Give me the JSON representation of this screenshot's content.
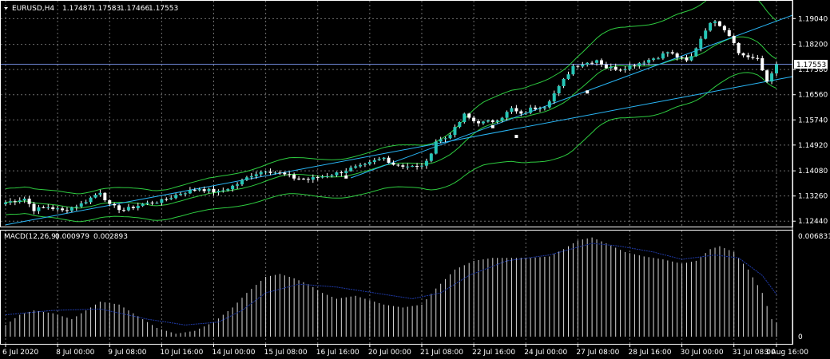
{
  "header": {
    "symbol": "EURUSD,H4",
    "ohlc": [
      "1.17487",
      "1.17583",
      "1.17466",
      "1.17553"
    ]
  },
  "macd": {
    "label": "MACD(12,26,9)",
    "main_value": "0.000979",
    "signal_value": "0.002893",
    "top_label": "0.006831",
    "zero_label": "0"
  },
  "colors": {
    "background": "#000000",
    "grid": "#6e6e6e",
    "frame": "#ffffff",
    "bull_body": "#26c6b7",
    "bear_body": "#ffffff",
    "bands": "#2ecc40",
    "trendline": "#29b6f6",
    "price_line": "#6f86d6",
    "macd_hist": "#d8d8d8",
    "macd_signal": "#1f3aa8"
  },
  "chart_data": {
    "type": "candlestick",
    "price_axis": {
      "ticks": [
        "1.19040",
        "1.18200",
        "1.17380",
        "1.16560",
        "1.15740",
        "1.14920",
        "1.14080",
        "1.13260",
        "1.12440"
      ],
      "range": [
        1.1229,
        1.1949
      ],
      "current_price": "1.17553",
      "current_value": 1.17553
    },
    "time_axis": {
      "bar_count": 164,
      "labels": [
        "6 Jul 2020",
        "8 Jul 00:00",
        "9 Jul 08:00",
        "10 Jul 16:00",
        "14 Jul 00:00",
        "15 Jul 08:00",
        "16 Jul 16:00",
        "20 Jul 00:00",
        "21 Jul 08:00",
        "22 Jul 16:00",
        "24 Jul 00:00",
        "27 Jul 08:00",
        "28 Jul 16:00",
        "30 Jul 00:00",
        "31 Jul 08:00",
        "3 Aug 16:00"
      ],
      "label_bars": [
        0,
        11,
        22,
        33,
        44,
        55,
        66,
        77,
        88,
        99,
        110,
        121,
        132,
        143,
        154,
        163
      ]
    },
    "close_path": [
      [
        0,
        1.1305
      ],
      [
        4,
        1.1318
      ],
      [
        6,
        1.1282
      ],
      [
        9,
        1.129
      ],
      [
        12,
        1.1278
      ],
      [
        16,
        1.13
      ],
      [
        20,
        1.134
      ],
      [
        22,
        1.1295
      ],
      [
        25,
        1.128
      ],
      [
        29,
        1.13
      ],
      [
        33,
        1.131
      ],
      [
        37,
        1.1335
      ],
      [
        41,
        1.135
      ],
      [
        45,
        1.1338
      ],
      [
        49,
        1.1365
      ],
      [
        52,
        1.1395
      ],
      [
        55,
        1.141
      ],
      [
        58,
        1.14
      ],
      [
        61,
        1.1385
      ],
      [
        64,
        1.138
      ],
      [
        67,
        1.139
      ],
      [
        70,
        1.14
      ],
      [
        73,
        1.1415
      ],
      [
        76,
        1.1425
      ],
      [
        78,
        1.144
      ],
      [
        80,
        1.145
      ],
      [
        82,
        1.143
      ],
      [
        84,
        1.1425
      ],
      [
        87,
        1.142
      ],
      [
        89,
        1.1435
      ],
      [
        91,
        1.1505
      ],
      [
        93,
        1.1515
      ],
      [
        95,
        1.1545
      ],
      [
        97,
        1.159
      ],
      [
        99,
        1.157
      ],
      [
        101,
        1.1565
      ],
      [
        103,
        1.157
      ],
      [
        105,
        1.1585
      ],
      [
        107,
        1.161
      ],
      [
        109,
        1.159
      ],
      [
        111,
        1.161
      ],
      [
        114,
        1.162
      ],
      [
        117,
        1.168
      ],
      [
        120,
        1.175
      ],
      [
        123,
        1.176
      ],
      [
        125,
        1.177
      ],
      [
        127,
        1.1745
      ],
      [
        130,
        1.174
      ],
      [
        133,
        1.1755
      ],
      [
        136,
        1.177
      ],
      [
        138,
        1.178
      ],
      [
        140,
        1.1795
      ],
      [
        142,
        1.178
      ],
      [
        144,
        1.1765
      ],
      [
        145,
        1.178
      ],
      [
        146,
        1.181
      ],
      [
        148,
        1.187
      ],
      [
        150,
        1.19
      ],
      [
        152,
        1.187
      ],
      [
        154,
        1.183
      ],
      [
        155,
        1.179
      ],
      [
        157,
        1.178
      ],
      [
        159,
        1.177
      ],
      [
        161,
        1.17
      ],
      [
        162,
        1.173
      ],
      [
        163,
        1.17553
      ]
    ],
    "bollinger": {
      "period_width_upper": [
        [
          0,
          0.0045
        ],
        [
          40,
          0.005
        ],
        [
          88,
          0.006
        ],
        [
          100,
          0.008
        ],
        [
          120,
          0.011
        ],
        [
          140,
          0.014
        ],
        [
          150,
          0.017
        ],
        [
          163,
          0.0125
        ]
      ],
      "period_width_lower": [
        [
          0,
          0.004
        ],
        [
          40,
          0.005
        ],
        [
          88,
          0.008
        ],
        [
          100,
          0.012
        ],
        [
          120,
          0.018
        ],
        [
          140,
          0.016
        ],
        [
          150,
          0.0135
        ],
        [
          163,
          0.0095
        ]
      ]
    },
    "trendlines": [
      {
        "from": [
          0,
          1.1232
        ],
        "to": [
          163,
          1.1715
        ],
        "points": [
          [
            72,
            1.1388
          ],
          [
            108,
            1.152
          ]
        ]
      },
      {
        "from": [
          73,
          1.1385
        ],
        "to": [
          163,
          1.1915
        ],
        "points": [
          [
            103,
            1.1552
          ],
          [
            123,
            1.1665
          ]
        ]
      }
    ],
    "macd_histogram": [
      [
        0,
        0.0008
      ],
      [
        3,
        0.0015
      ],
      [
        6,
        0.0018
      ],
      [
        10,
        0.0016
      ],
      [
        14,
        0.0012
      ],
      [
        18,
        0.002
      ],
      [
        20,
        0.0024
      ],
      [
        24,
        0.0022
      ],
      [
        28,
        0.0014
      ],
      [
        32,
        0.0006
      ],
      [
        36,
        0.0002
      ],
      [
        40,
        0.0004
      ],
      [
        44,
        0.001
      ],
      [
        48,
        0.002
      ],
      [
        51,
        0.003
      ],
      [
        55,
        0.0041
      ],
      [
        58,
        0.0043
      ],
      [
        61,
        0.004
      ],
      [
        64,
        0.0036
      ],
      [
        67,
        0.003
      ],
      [
        70,
        0.0026
      ],
      [
        74,
        0.0028
      ],
      [
        77,
        0.0025
      ],
      [
        80,
        0.0022
      ],
      [
        84,
        0.002
      ],
      [
        88,
        0.0022
      ],
      [
        91,
        0.0033
      ],
      [
        95,
        0.0046
      ],
      [
        99,
        0.0052
      ],
      [
        103,
        0.0054
      ],
      [
        107,
        0.0054
      ],
      [
        111,
        0.0054
      ],
      [
        115,
        0.0055
      ],
      [
        118,
        0.006
      ],
      [
        121,
        0.0066
      ],
      [
        124,
        0.0068
      ],
      [
        127,
        0.0064
      ],
      [
        131,
        0.0058
      ],
      [
        135,
        0.0055
      ],
      [
        139,
        0.0053
      ],
      [
        143,
        0.005
      ],
      [
        146,
        0.0052
      ],
      [
        149,
        0.006
      ],
      [
        151,
        0.0062
      ],
      [
        154,
        0.0058
      ],
      [
        157,
        0.0046
      ],
      [
        160,
        0.003
      ],
      [
        162,
        0.0012
      ],
      [
        163,
        0.000979
      ]
    ],
    "macd_signal": [
      [
        0,
        0.0015
      ],
      [
        10,
        0.0018
      ],
      [
        20,
        0.0019
      ],
      [
        30,
        0.0012
      ],
      [
        38,
        0.0008
      ],
      [
        45,
        0.001
      ],
      [
        50,
        0.0018
      ],
      [
        55,
        0.003
      ],
      [
        62,
        0.0036
      ],
      [
        70,
        0.0034
      ],
      [
        78,
        0.003
      ],
      [
        86,
        0.0026
      ],
      [
        92,
        0.003
      ],
      [
        98,
        0.0042
      ],
      [
        106,
        0.0052
      ],
      [
        115,
        0.0056
      ],
      [
        124,
        0.0064
      ],
      [
        130,
        0.0062
      ],
      [
        137,
        0.0058
      ],
      [
        143,
        0.0053
      ],
      [
        150,
        0.0056
      ],
      [
        155,
        0.0054
      ],
      [
        160,
        0.0042
      ],
      [
        163,
        0.002893
      ]
    ],
    "macd_range": [
      0,
      0.007
    ]
  }
}
